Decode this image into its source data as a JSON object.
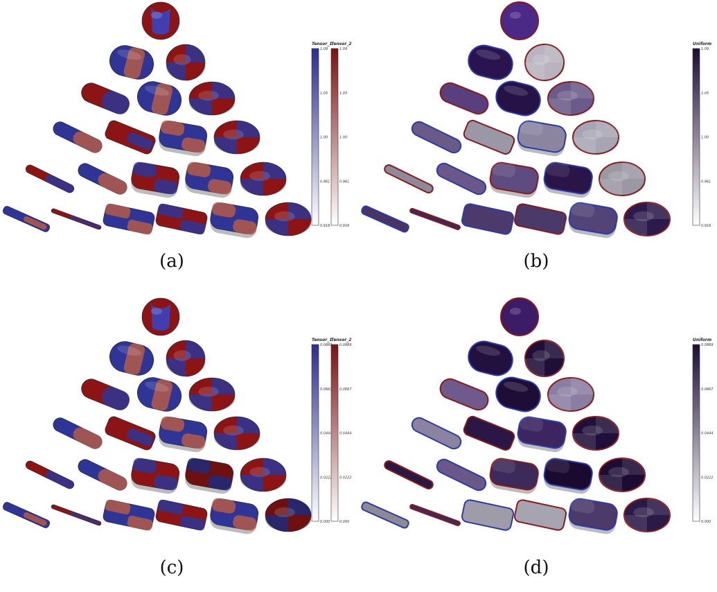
{
  "figure": {
    "panels": [
      {
        "id": "a",
        "caption": "(a)",
        "mode": "dual",
        "variant": "top",
        "colorbars": [
          {
            "title": "Tensor_1",
            "color": "#2b2f8f",
            "ticks": [
              "1.09",
              "1.05",
              "1.00",
              "0.961",
              "0.916"
            ]
          },
          {
            "title": "Tensor_2",
            "color": "#7a1212",
            "ticks": [
              "1.09",
              "1.05",
              "1.00",
              "0.961",
              "0.916"
            ]
          }
        ]
      },
      {
        "id": "b",
        "caption": "(b)",
        "mode": "uniform",
        "variant": "top",
        "colorbars": [
          {
            "title": "Uniform",
            "color": "#1c0f33",
            "ticks": [
              "1.09",
              "1.05",
              "1.00",
              "0.961",
              "0.916"
            ]
          }
        ]
      },
      {
        "id": "c",
        "caption": "(c)",
        "mode": "dual",
        "variant": "bottom",
        "colorbars": [
          {
            "title": "Tensor_1",
            "color": "#2b2f8f",
            "ticks": [
              "0.0889",
              "0.0667",
              "0.0444",
              "0.0222",
              "0.000"
            ]
          },
          {
            "title": "Tensor_2",
            "color": "#7a1212",
            "ticks": [
              "0.0889",
              "0.0667",
              "0.0444",
              "0.0222",
              "0.000"
            ]
          }
        ]
      },
      {
        "id": "d",
        "caption": "(d)",
        "mode": "uniform",
        "variant": "bottom",
        "colorbars": [
          {
            "title": "Uniform",
            "color": "#1c0f33",
            "ticks": [
              "0.0889",
              "0.0667",
              "0.0444",
              "0.0222",
              "0.000"
            ]
          }
        ]
      }
    ]
  }
}
